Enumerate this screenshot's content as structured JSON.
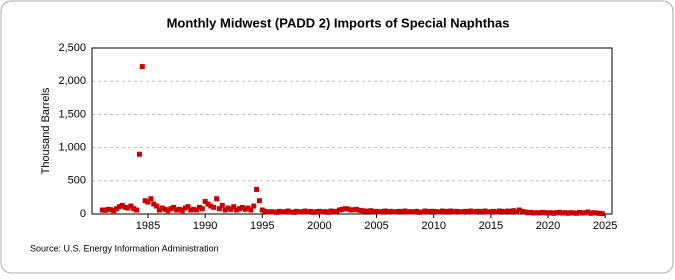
{
  "chart_data": {
    "type": "scatter",
    "title": "Monthly Midwest (PADD 2) Imports of Special Naphthas",
    "y_label": "Thousand Barrels",
    "source": "Source: U.S. Energy Information Administration",
    "series": [
      {
        "color": "#cc0000",
        "x": [
          1981,
          1981.25,
          1981.5,
          1981.75,
          1982,
          1982.25,
          1982.5,
          1982.75,
          1983,
          1983.25,
          1983.5,
          1983.75,
          1984,
          1984.25,
          1984.5,
          1984.75,
          1985,
          1985.25,
          1985.5,
          1985.75,
          1986,
          1986.25,
          1986.5,
          1986.75,
          1987,
          1987.25,
          1987.5,
          1987.75,
          1988,
          1988.25,
          1988.5,
          1988.75,
          1989,
          1989.25,
          1989.5,
          1989.75,
          1990,
          1990.25,
          1990.5,
          1990.75,
          1991,
          1991.25,
          1991.5,
          1991.75,
          1992,
          1992.25,
          1992.5,
          1992.75,
          1993,
          1993.25,
          1993.5,
          1993.75,
          1994,
          1994.25,
          1994.5,
          1994.75,
          1995,
          1995.25,
          1995.5,
          1995.75,
          1996,
          1996.25,
          1996.5,
          1996.75,
          1997,
          1997.25,
          1997.5,
          1997.75,
          1998,
          1998.25,
          1998.5,
          1998.75,
          1999,
          1999.25,
          1999.5,
          1999.75,
          2000,
          2000.25,
          2000.5,
          2000.75,
          2001,
          2001.25,
          2001.5,
          2001.75,
          2002,
          2002.25,
          2002.5,
          2002.75,
          2003,
          2003.25,
          2003.5,
          2003.75,
          2004,
          2004.25,
          2004.5,
          2004.75,
          2005,
          2005.25,
          2005.5,
          2005.75,
          2006,
          2006.25,
          2006.5,
          2006.75,
          2007,
          2007.25,
          2007.5,
          2007.75,
          2008,
          2008.25,
          2008.5,
          2008.75,
          2009,
          2009.25,
          2009.5,
          2009.75,
          2010,
          2010.25,
          2010.5,
          2010.75,
          2011,
          2011.25,
          2011.5,
          2011.75,
          2012,
          2012.25,
          2012.5,
          2012.75,
          2013,
          2013.25,
          2013.5,
          2013.75,
          2014,
          2014.25,
          2014.5,
          2014.75,
          2015,
          2015.25,
          2015.5,
          2015.75,
          2016,
          2016.25,
          2016.5,
          2016.75,
          2017,
          2017.25,
          2017.5,
          2017.75,
          2018,
          2018.25,
          2018.5,
          2018.75,
          2019,
          2019.25,
          2019.5,
          2019.75,
          2020,
          2020.25,
          2020.5,
          2020.75,
          2021,
          2021.25,
          2021.5,
          2021.75,
          2022,
          2022.25,
          2022.5,
          2022.75,
          2023,
          2023.25,
          2023.5,
          2023.75,
          2024,
          2024.25,
          2024.5,
          2024.75
        ],
        "values": [
          60,
          55,
          70,
          65,
          50,
          80,
          110,
          130,
          100,
          90,
          120,
          80,
          60,
          900,
          2220,
          200,
          180,
          230,
          150,
          120,
          60,
          90,
          70,
          50,
          80,
          100,
          60,
          70,
          50,
          90,
          110,
          60,
          70,
          60,
          100,
          80,
          190,
          150,
          120,
          100,
          230,
          80,
          130,
          60,
          90,
          70,
          110,
          60,
          80,
          100,
          70,
          90,
          60,
          120,
          370,
          200,
          60,
          40,
          30,
          35,
          30,
          25,
          40,
          30,
          35,
          45,
          30,
          25,
          40,
          30,
          35,
          45,
          30,
          40,
          25,
          35,
          40,
          30,
          35,
          25,
          45,
          35,
          40,
          60,
          70,
          80,
          75,
          60,
          65,
          70,
          55,
          50,
          45,
          40,
          50,
          35,
          40,
          30,
          35,
          45,
          35,
          40,
          30,
          35,
          40,
          35,
          45,
          30,
          35,
          30,
          40,
          25,
          30,
          45,
          35,
          40,
          40,
          35,
          30,
          45,
          35,
          40,
          45,
          30,
          40,
          35,
          30,
          40,
          35,
          45,
          30,
          40,
          40,
          35,
          45,
          30,
          35,
          40,
          30,
          45,
          40,
          35,
          45,
          40,
          50,
          35,
          60,
          40,
          30,
          20,
          25,
          15,
          20,
          15,
          25,
          20,
          15,
          20,
          10,
          20,
          25,
          15,
          20,
          10,
          20,
          15,
          10,
          25,
          15,
          20,
          30,
          10,
          20,
          15,
          10,
          5
        ]
      }
    ],
    "xlim": [
      1980.1,
      2025.6
    ],
    "xticks": [
      1985,
      1990,
      1995,
      2000,
      2005,
      2010,
      2015,
      2020,
      2025
    ],
    "ylim": [
      0,
      2500
    ],
    "yticks": [
      0,
      500,
      {
        "value": 1000,
        "label": "1,000"
      },
      {
        "value": 1500,
        "label": "1,500"
      },
      {
        "value": 2000,
        "label": "2,000"
      },
      {
        "value": 2500,
        "label": "2,500"
      }
    ],
    "grid": true
  }
}
